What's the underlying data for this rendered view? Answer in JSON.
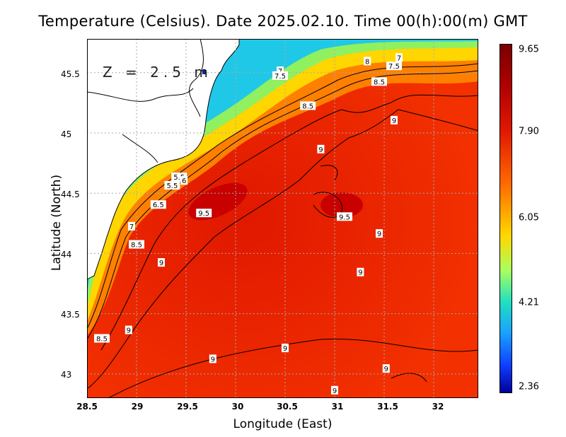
{
  "title": "Temperature (Celsius). Date 2025.02.10. Time 00(h):00(m) GMT",
  "depth_label": "Z = 2.5 m",
  "x_axis": {
    "label": "Longitude (East)",
    "ticks": [
      "28.5",
      "29",
      "29.5",
      "30",
      "30.5",
      "31",
      "31.5",
      "32"
    ],
    "range": [
      28.5,
      32.45
    ]
  },
  "y_axis": {
    "label": "Latitude (North)",
    "ticks": [
      "43",
      "43.5",
      "44",
      "44.5",
      "45",
      "45.5"
    ],
    "range": [
      42.8,
      45.78
    ]
  },
  "colorbar": {
    "ticks": [
      "9.65",
      "7.90",
      "6.05",
      "4.21",
      "2.36"
    ],
    "min": 2.36,
    "max": 9.65
  },
  "contour_labels": [
    {
      "text": "7",
      "lon": 31.65,
      "lat": 45.62
    },
    {
      "text": "7.5",
      "lon": 31.6,
      "lat": 45.55
    },
    {
      "text": "8",
      "lon": 31.33,
      "lat": 45.59
    },
    {
      "text": "8.5",
      "lon": 31.45,
      "lat": 45.42
    },
    {
      "text": "7",
      "lon": 30.45,
      "lat": 45.51
    },
    {
      "text": "7.5",
      "lon": 30.45,
      "lat": 45.47
    },
    {
      "text": "8.5",
      "lon": 30.73,
      "lat": 45.22
    },
    {
      "text": "9",
      "lon": 31.6,
      "lat": 45.1
    },
    {
      "text": "9",
      "lon": 30.86,
      "lat": 44.86
    },
    {
      "text": "5.5",
      "lon": 29.43,
      "lat": 44.63
    },
    {
      "text": "6",
      "lon": 29.48,
      "lat": 44.6
    },
    {
      "text": "5.5",
      "lon": 29.36,
      "lat": 44.56
    },
    {
      "text": "6.5",
      "lon": 29.22,
      "lat": 44.4
    },
    {
      "text": "9.5",
      "lon": 29.68,
      "lat": 44.33
    },
    {
      "text": "9.5",
      "lon": 31.1,
      "lat": 44.3
    },
    {
      "text": "7",
      "lon": 28.95,
      "lat": 44.22
    },
    {
      "text": "9",
      "lon": 31.45,
      "lat": 44.16
    },
    {
      "text": "8.5",
      "lon": 29.0,
      "lat": 44.07
    },
    {
      "text": "9",
      "lon": 29.25,
      "lat": 43.92
    },
    {
      "text": "9",
      "lon": 31.26,
      "lat": 43.84
    },
    {
      "text": "9",
      "lon": 28.92,
      "lat": 43.36
    },
    {
      "text": "8.5",
      "lon": 28.65,
      "lat": 43.29
    },
    {
      "text": "9",
      "lon": 30.5,
      "lat": 43.21
    },
    {
      "text": "9",
      "lon": 29.77,
      "lat": 43.12
    },
    {
      "text": "9",
      "lon": 31.52,
      "lat": 43.04
    },
    {
      "text": "9",
      "lon": 31.0,
      "lat": 42.86
    }
  ]
}
